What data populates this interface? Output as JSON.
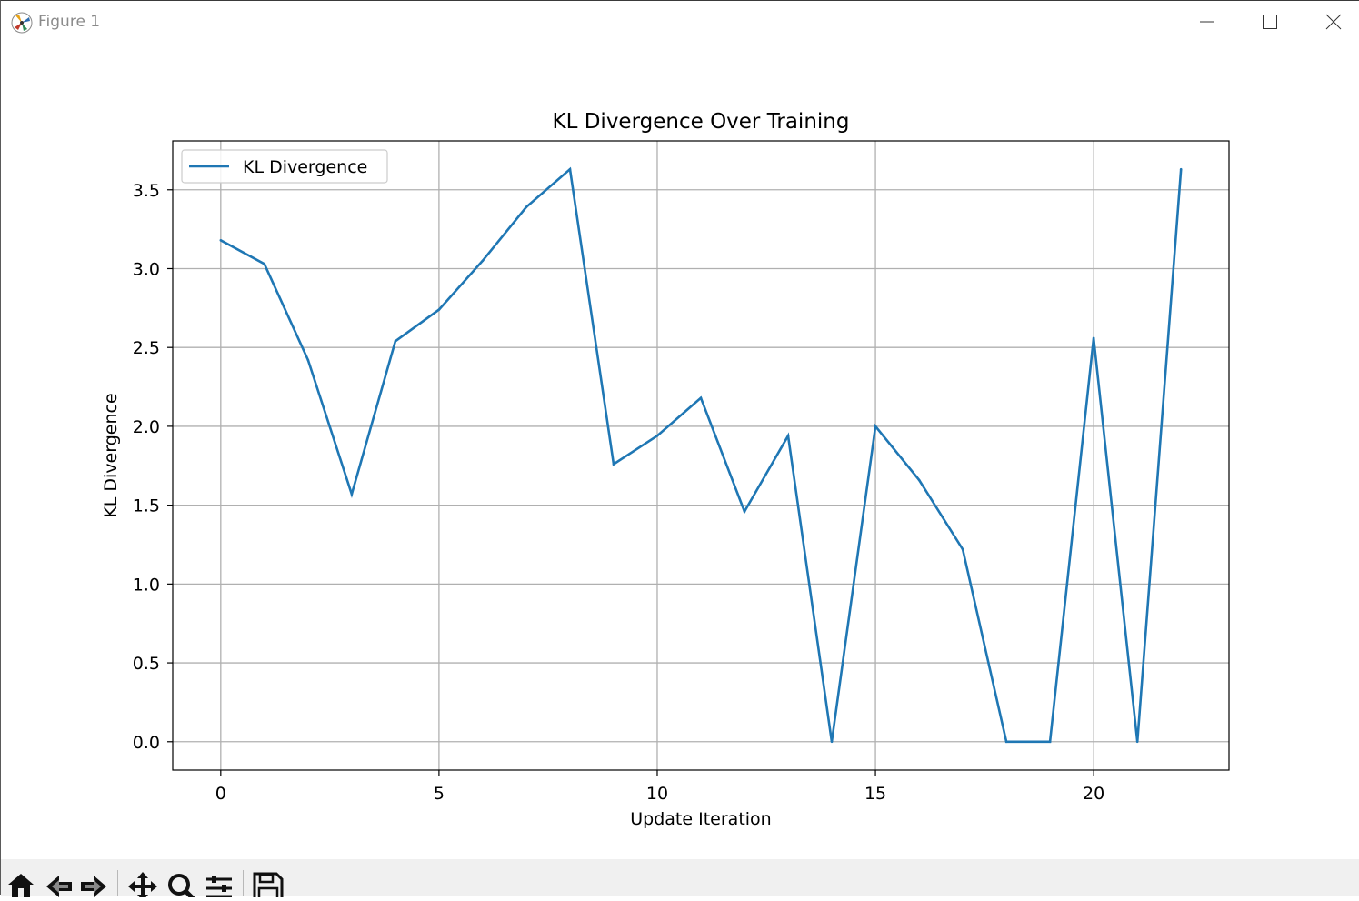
{
  "window": {
    "title": "Figure 1",
    "icons": [
      "matplotlib-icon",
      "minimize-icon",
      "maximize-icon",
      "close-icon"
    ]
  },
  "toolbar": {
    "tools": [
      "home-icon",
      "back-icon",
      "forward-icon",
      "pan-icon",
      "zoom-icon",
      "configure-subplots-icon",
      "save-icon"
    ]
  },
  "chart_data": {
    "type": "line",
    "title": "KL Divergence Over Training",
    "xlabel": "Update Iteration",
    "ylabel": "KL Divergence",
    "xlim": [
      -1.1,
      23.1
    ],
    "ylim": [
      -0.18,
      3.81
    ],
    "xticks": [
      0,
      5,
      10,
      15,
      20
    ],
    "yticks": [
      0.0,
      0.5,
      1.0,
      1.5,
      2.0,
      2.5,
      3.0,
      3.5
    ],
    "xtick_labels": [
      "0",
      "5",
      "10",
      "15",
      "20"
    ],
    "ytick_labels": [
      "0.0",
      "0.5",
      "1.0",
      "1.5",
      "2.0",
      "2.5",
      "3.0",
      "3.5"
    ],
    "grid": true,
    "legend": "upper left",
    "series": [
      {
        "name": "KL Divergence",
        "color": "#1f77b4",
        "x": [
          0,
          1,
          2,
          3,
          4,
          5,
          6,
          7,
          8,
          9,
          10,
          11,
          12,
          13,
          14,
          15,
          16,
          17,
          18,
          19,
          20,
          21,
          22
        ],
        "y": [
          3.18,
          3.03,
          2.42,
          1.57,
          2.54,
          2.74,
          3.05,
          3.39,
          3.63,
          1.76,
          1.94,
          2.18,
          1.46,
          1.94,
          0.0,
          2.0,
          1.66,
          1.22,
          0.0,
          0.0,
          2.56,
          0.0,
          3.63
        ]
      }
    ]
  }
}
